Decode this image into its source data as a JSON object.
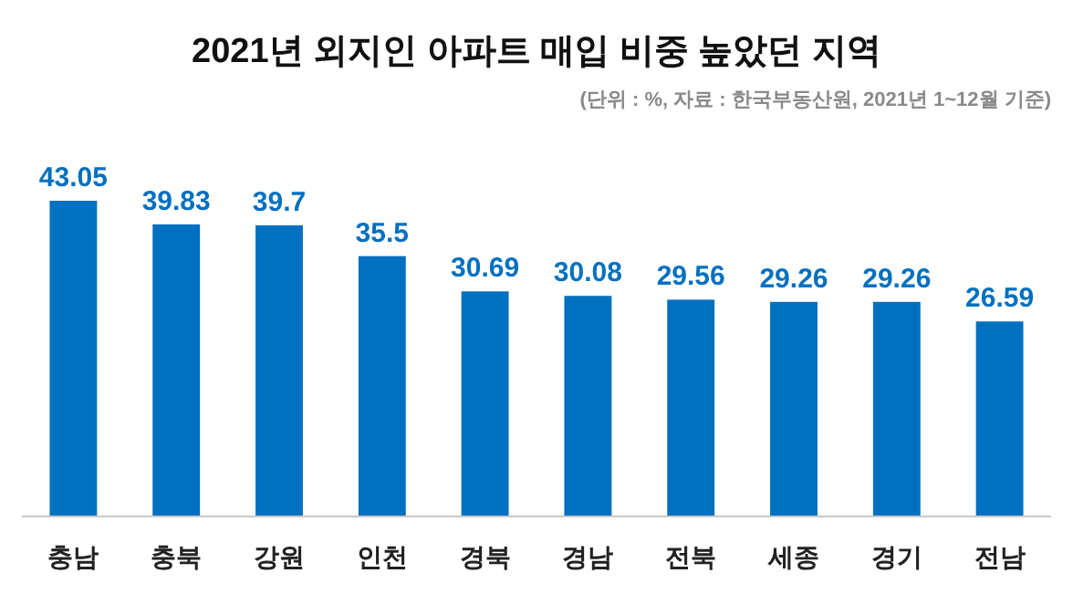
{
  "chart_data": {
    "type": "bar",
    "title": "2021년 외지인 아파트 매입 비중 높았던 지역",
    "subtitle": "(단위 : %, 자료 : 한국부동산원, 2021년 1~12월 기준)",
    "categories": [
      "충남",
      "충북",
      "강원",
      "인천",
      "경북",
      "경남",
      "전북",
      "세종",
      "경기",
      "전남"
    ],
    "values": [
      43.05,
      39.83,
      39.7,
      35.5,
      30.69,
      30.08,
      29.56,
      29.26,
      29.26,
      26.59
    ],
    "color": "#0070c0",
    "data_labels": true
  }
}
